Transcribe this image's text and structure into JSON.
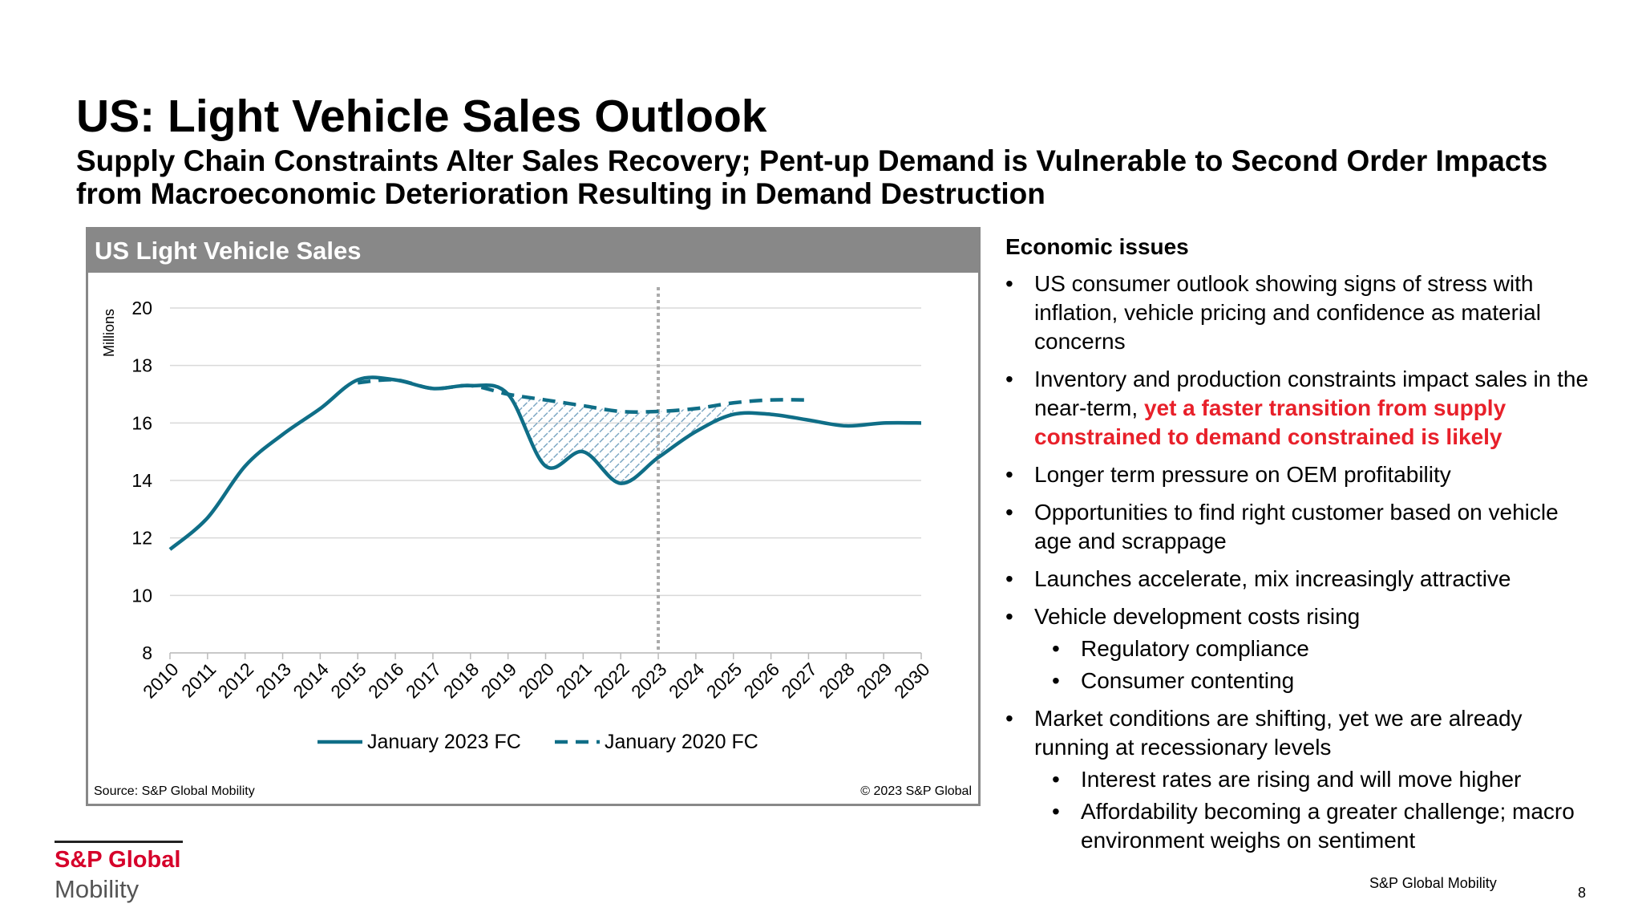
{
  "header": {
    "title": "US: Light Vehicle Sales Outlook",
    "subtitle": "Supply Chain Constraints Alter Sales Recovery; Pent-up Demand is Vulnerable to Second Order Impacts from Macroeconomic Deterioration Resulting in Demand Destruction"
  },
  "chart_data": {
    "type": "line",
    "title": "US Light Vehicle Sales",
    "y_label": "Millions",
    "x": [
      2010,
      2011,
      2012,
      2013,
      2014,
      2015,
      2016,
      2017,
      2018,
      2019,
      2020,
      2021,
      2022,
      2023,
      2024,
      2025,
      2026,
      2027,
      2028,
      2029,
      2030
    ],
    "xlim": [
      2010,
      2030
    ],
    "ylim": [
      8,
      20
    ],
    "yticks": [
      8,
      10,
      12,
      14,
      16,
      18,
      20
    ],
    "grid": true,
    "divider_x": 2023,
    "series": [
      {
        "name": "January 2023 FC",
        "color": "#0f6e87",
        "dashed": false,
        "values": [
          11.6,
          12.7,
          14.5,
          15.6,
          16.5,
          17.5,
          17.5,
          17.2,
          17.3,
          17.0,
          14.5,
          15.0,
          13.9,
          14.8,
          15.7,
          16.3,
          16.3,
          16.1,
          15.9,
          16.0,
          16.0
        ]
      },
      {
        "name": "January 2020 FC",
        "color": "#0f6e87",
        "dashed": true,
        "values": [
          null,
          null,
          null,
          null,
          null,
          17.4,
          17.5,
          17.2,
          17.3,
          17.0,
          16.8,
          16.6,
          16.4,
          16.4,
          16.5,
          16.7,
          16.8,
          16.8,
          null,
          null,
          null
        ]
      }
    ],
    "source": "Source: S&P Global Mobility",
    "copyright": "© 2023 S&P Global"
  },
  "notes": {
    "heading": "Economic issues",
    "items": [
      {
        "text": "US consumer outlook showing signs of stress with inflation, vehicle pricing and confidence as material concerns"
      },
      {
        "text": "Inventory and production constraints impact sales in the near-term, ",
        "highlight": "yet a faster transition from supply constrained to demand constrained is likely"
      },
      {
        "text": "Longer term pressure on OEM profitability"
      },
      {
        "text": "Opportunities to find right customer based on vehicle age and scrappage"
      },
      {
        "text": "Launches accelerate, mix increasingly attractive"
      },
      {
        "text": "Vehicle development costs rising",
        "children": [
          "Regulatory compliance",
          "Consumer contenting"
        ]
      },
      {
        "text": "Market conditions are shifting, yet we are already running at recessionary levels",
        "children": [
          "Interest rates are rising and will move higher",
          "Affordability becoming a greater challenge; macro environment weighs on sentiment"
        ]
      }
    ]
  },
  "footer": {
    "logo_top": "S&P Global",
    "logo_bottom": "Mobility",
    "brand": "S&P Global Mobility",
    "page": "8"
  }
}
